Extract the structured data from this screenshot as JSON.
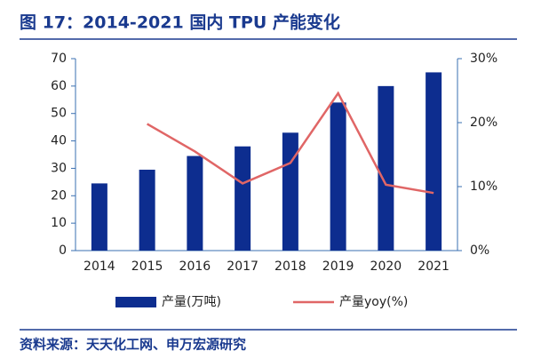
{
  "chart_data": {
    "type": "bar",
    "title": "图 17：2014-2021 国内 TPU 产能变化",
    "source": "资料来源：天天化工网、申万宏源研究",
    "categories": [
      "2014",
      "2015",
      "2016",
      "2017",
      "2018",
      "2019",
      "2020",
      "2021"
    ],
    "series": [
      {
        "name": "产量(万吨)",
        "type": "bar",
        "color": "#0d2d8f",
        "values": [
          24.5,
          29.5,
          34.5,
          38,
          43,
          54,
          60,
          65
        ]
      },
      {
        "name": "产量yoy(%)",
        "type": "line",
        "axis": "y2",
        "color": "#e06666",
        "values": [
          null,
          19.8,
          15.5,
          10.5,
          13.7,
          24.6,
          10.3,
          9.0
        ]
      }
    ],
    "ylim": [
      0,
      70
    ],
    "yticks": [
      0,
      10,
      20,
      30,
      40,
      50,
      60,
      70
    ],
    "y2lim": [
      0,
      30
    ],
    "y2ticks": [
      {
        "value": 0,
        "label": "0%"
      },
      {
        "value": 10,
        "label": "10%"
      },
      {
        "value": 20,
        "label": "20%"
      },
      {
        "value": 30,
        "label": "30%"
      }
    ],
    "grid": false,
    "legend": "bottom"
  }
}
